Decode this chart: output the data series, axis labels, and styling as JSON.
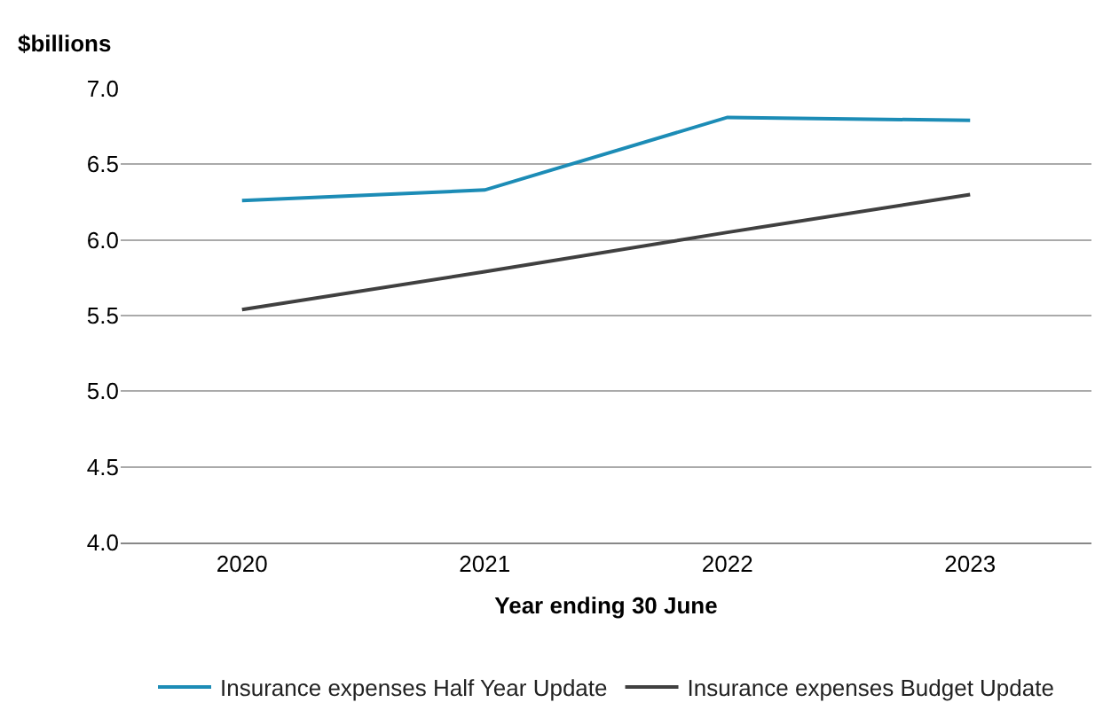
{
  "chart_data": {
    "type": "line",
    "ylabel": "$billions",
    "xlabel": "Year ending 30 June",
    "categories": [
      "2020",
      "2021",
      "2022",
      "2023"
    ],
    "series": [
      {
        "name": "Insurance expenses Half Year Update",
        "color": "#1c8cb6",
        "values": [
          6.26,
          6.33,
          6.81,
          6.79
        ]
      },
      {
        "name": "Insurance expenses Budget Update",
        "color": "#404040",
        "values": [
          5.54,
          5.79,
          6.05,
          6.3
        ]
      }
    ],
    "ylim": [
      4.0,
      7.0
    ],
    "yticks": [
      {
        "value": 4,
        "label": "4.0"
      },
      {
        "value": 4.5,
        "label": "4.5"
      },
      {
        "value": 5,
        "label": "5.0"
      },
      {
        "value": 5.5,
        "label": "5.5"
      },
      {
        "value": 6,
        "label": "6.0"
      },
      {
        "value": 6.5,
        "label": "6.5"
      },
      {
        "value": 7,
        "label": "7.0"
      }
    ],
    "grid": "y",
    "legend": "bottom",
    "marker": "none",
    "line_style": "solid"
  }
}
